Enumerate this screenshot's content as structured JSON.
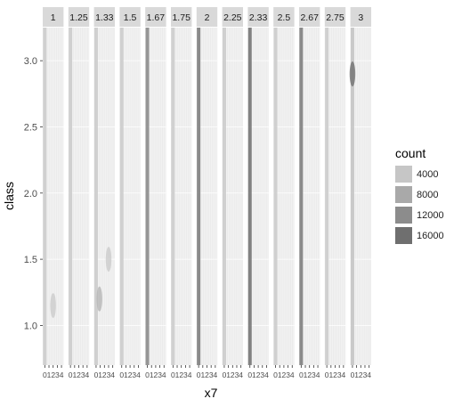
{
  "chart_data": {
    "type": "heatmap",
    "title": "",
    "xlabel": "x7",
    "ylabel": "class",
    "facet_labels": [
      "1",
      "1.25",
      "1.33",
      "1.5",
      "1.67",
      "1.75",
      "2",
      "2.25",
      "2.33",
      "2.5",
      "2.67",
      "2.75",
      "3"
    ],
    "x_tick_labels": [
      "0",
      "1",
      "2",
      "3",
      "4"
    ],
    "y_ticks": [
      "1.0",
      "1.5",
      "2.0",
      "2.5",
      "3.0"
    ],
    "ylim": [
      0.7,
      3.25
    ],
    "xlim": [
      -0.5,
      4.5
    ],
    "grid": true,
    "legend": {
      "title": "count",
      "placement": "right",
      "entries": [
        {
          "label": "4000",
          "value": 4000,
          "color": "#c6c6c6"
        },
        {
          "label": "8000",
          "value": 8000,
          "color": "#a9a9a9"
        },
        {
          "label": "12000",
          "value": 12000,
          "color": "#8c8c8c"
        },
        {
          "label": "16000",
          "value": 16000,
          "color": "#6f6f6f"
        }
      ]
    },
    "series": [
      {
        "facet": "1",
        "dense": {
          "x": 0,
          "count": 3000
        },
        "blobs": [
          {
            "x": 2.0,
            "y": 1.15,
            "count": 3000
          }
        ]
      },
      {
        "facet": "1.25",
        "dense": {
          "x": 0,
          "count": 3000
        },
        "blobs": []
      },
      {
        "facet": "1.33",
        "dense": {
          "x": 0,
          "count": 3000
        },
        "blobs": [
          {
            "x": 0.8,
            "y": 1.2,
            "count": 6000
          },
          {
            "x": 3.0,
            "y": 1.5,
            "count": 3000
          }
        ]
      },
      {
        "facet": "1.5",
        "dense": {
          "x": 0,
          "count": 3000
        },
        "blobs": []
      },
      {
        "facet": "1.67",
        "dense": {
          "x": 0,
          "count": 12000
        },
        "blobs": []
      },
      {
        "facet": "1.75",
        "dense": {
          "x": 0,
          "count": 3000
        },
        "blobs": []
      },
      {
        "facet": "2",
        "dense": {
          "x": 0,
          "count": 14000
        },
        "blobs": []
      },
      {
        "facet": "2.25",
        "dense": {
          "x": 0,
          "count": 3000
        },
        "blobs": []
      },
      {
        "facet": "2.33",
        "dense": {
          "x": 0,
          "count": 15000
        },
        "blobs": []
      },
      {
        "facet": "2.5",
        "dense": {
          "x": 0,
          "count": 3000
        },
        "blobs": []
      },
      {
        "facet": "2.67",
        "dense": {
          "x": 0,
          "count": 14000
        },
        "blobs": []
      },
      {
        "facet": "2.75",
        "dense": {
          "x": 0,
          "count": 3000
        },
        "blobs": []
      },
      {
        "facet": "3",
        "dense": {
          "x": 0,
          "count": 4000
        },
        "blobs": [
          {
            "x": 0,
            "y": 2.9,
            "count": 16000
          }
        ]
      }
    ]
  }
}
